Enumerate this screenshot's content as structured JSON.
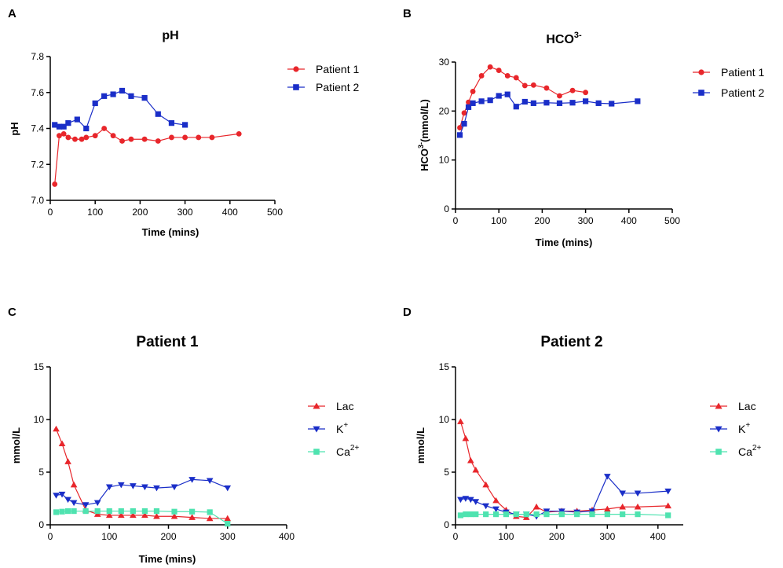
{
  "panels": [
    {
      "letter": "A",
      "title": "pH",
      "xlabel": "Time (mins)",
      "ylabel": "pH"
    },
    {
      "letter": "B",
      "title": "HCO³⁻",
      "xlabel": "Time (mins)",
      "ylabel": "HCO³⁻(mmol/L)"
    },
    {
      "letter": "C",
      "title": "Patient 1",
      "xlabel": "Time (mins)",
      "ylabel": "mmol/L"
    },
    {
      "letter": "D",
      "title": "Patient 2",
      "xlabel": "",
      "ylabel": "mmol/L"
    }
  ],
  "colors": {
    "red": "#e8262b",
    "blue": "#1a2ec8",
    "teal": "#4fe3b0",
    "axis": "#000000"
  },
  "chart_data": [
    {
      "type": "line",
      "title": "pH",
      "xlabel": "Time (mins)",
      "ylabel": "pH",
      "xlim": [
        0,
        500
      ],
      "ylim": [
        7.0,
        7.8
      ],
      "xticks": [
        "0",
        "100",
        "200",
        "300",
        "400",
        "500"
      ],
      "yticks": [
        "7.0",
        "7.2",
        "7.4",
        "7.6",
        "7.8"
      ],
      "legend_position": "top-right",
      "series": [
        {
          "name": "Patient 1",
          "marker": "circle",
          "color": "#e8262b",
          "x": [
            10,
            20,
            30,
            40,
            55,
            70,
            80,
            100,
            120,
            140,
            160,
            180,
            210,
            240,
            270,
            300,
            330,
            360,
            420
          ],
          "y": [
            7.09,
            7.36,
            7.37,
            7.35,
            7.34,
            7.34,
            7.35,
            7.36,
            7.4,
            7.36,
            7.33,
            7.34,
            7.34,
            7.33,
            7.35,
            7.35,
            7.35,
            7.35,
            7.37
          ]
        },
        {
          "name": "Patient 2",
          "marker": "square",
          "color": "#1a2ec8",
          "x": [
            10,
            20,
            30,
            40,
            60,
            80,
            100,
            120,
            140,
            160,
            180,
            210,
            240,
            270,
            300
          ],
          "y": [
            7.42,
            7.41,
            7.41,
            7.43,
            7.45,
            7.4,
            7.54,
            7.58,
            7.59,
            7.61,
            7.58,
            7.57,
            7.48,
            7.43,
            7.42
          ]
        }
      ]
    },
    {
      "type": "line",
      "title": "HCO³⁻",
      "xlabel": "Time (mins)",
      "ylabel": "HCO³⁻(mmol/L)",
      "xlim": [
        0,
        500
      ],
      "ylim": [
        0,
        30
      ],
      "xticks": [
        "0",
        "100",
        "200",
        "300",
        "400",
        "500"
      ],
      "yticks": [
        "0",
        "10",
        "20",
        "30"
      ],
      "legend_position": "top-right",
      "series": [
        {
          "name": "Patient 1",
          "marker": "circle",
          "color": "#e8262b",
          "x": [
            10,
            20,
            30,
            40,
            60,
            80,
            100,
            120,
            140,
            160,
            180,
            210,
            240,
            270,
            300
          ],
          "y": [
            16.6,
            19.6,
            21.8,
            24.0,
            27.2,
            29.0,
            28.3,
            27.2,
            26.8,
            25.2,
            25.3,
            24.7,
            23.1,
            24.2,
            23.8
          ]
        },
        {
          "name": "Patient 2",
          "marker": "square",
          "color": "#1a2ec8",
          "x": [
            10,
            20,
            30,
            40,
            60,
            80,
            100,
            120,
            140,
            160,
            180,
            210,
            240,
            270,
            300,
            330,
            360,
            420
          ],
          "y": [
            15.1,
            17.4,
            20.8,
            21.6,
            22.0,
            22.2,
            23.1,
            23.4,
            20.9,
            21.9,
            21.6,
            21.7,
            21.6,
            21.7,
            22.0,
            21.6,
            21.5,
            22.0
          ]
        }
      ]
    },
    {
      "type": "line",
      "title": "Patient 1",
      "xlabel": "Time (mins)",
      "ylabel": "mmol/L",
      "xlim": [
        0,
        400
      ],
      "ylim": [
        0,
        15
      ],
      "xticks": [
        "0",
        "100",
        "200",
        "300",
        "400"
      ],
      "yticks": [
        "0",
        "5",
        "10",
        "15"
      ],
      "legend_position": "right",
      "series": [
        {
          "name": "Lac",
          "marker": "triangle-up",
          "color": "#e8262b",
          "x": [
            10,
            20,
            30,
            40,
            60,
            80,
            100,
            120,
            140,
            160,
            180,
            210,
            240,
            270,
            300
          ],
          "y": [
            9.1,
            7.7,
            6.0,
            3.8,
            1.4,
            1.0,
            0.9,
            0.9,
            0.9,
            0.9,
            0.8,
            0.8,
            0.7,
            0.6,
            0.6
          ]
        },
        {
          "name": "K",
          "sup": "+",
          "marker": "triangle-down",
          "color": "#1a2ec8",
          "x": [
            10,
            20,
            30,
            40,
            60,
            80,
            100,
            120,
            140,
            160,
            180,
            210,
            240,
            270,
            300
          ],
          "y": [
            2.8,
            2.9,
            2.4,
            2.1,
            1.9,
            2.1,
            3.6,
            3.8,
            3.7,
            3.6,
            3.5,
            3.6,
            4.3,
            4.2,
            3.5
          ]
        },
        {
          "name": "Ca",
          "sup": "2+",
          "marker": "square",
          "color": "#4fe3b0",
          "x": [
            10,
            20,
            30,
            40,
            60,
            80,
            100,
            120,
            140,
            160,
            180,
            210,
            240,
            270,
            300
          ],
          "y": [
            1.2,
            1.25,
            1.3,
            1.3,
            1.3,
            1.3,
            1.3,
            1.3,
            1.3,
            1.3,
            1.3,
            1.25,
            1.25,
            1.2,
            0.1
          ]
        }
      ]
    },
    {
      "type": "line",
      "title": "Patient 2",
      "xlabel": "",
      "ylabel": "mmol/L",
      "xlim": [
        0,
        450
      ],
      "ylim": [
        0,
        15
      ],
      "xticks": [
        "0",
        "100",
        "200",
        "300",
        "400"
      ],
      "yticks": [
        "0",
        "5",
        "10",
        "15"
      ],
      "legend_position": "right",
      "series": [
        {
          "name": "Lac",
          "marker": "triangle-up",
          "color": "#e8262b",
          "x": [
            10,
            20,
            30,
            40,
            60,
            80,
            100,
            120,
            140,
            160,
            180,
            210,
            240,
            270,
            300,
            330,
            360,
            420
          ],
          "y": [
            9.8,
            8.2,
            6.1,
            5.2,
            3.8,
            2.3,
            1.4,
            0.8,
            0.7,
            1.7,
            1.2,
            1.3,
            1.3,
            1.4,
            1.5,
            1.7,
            1.7,
            1.8
          ]
        },
        {
          "name": "K",
          "sup": "+",
          "marker": "triangle-down",
          "color": "#1a2ec8",
          "x": [
            10,
            20,
            30,
            40,
            60,
            80,
            100,
            120,
            140,
            160,
            180,
            210,
            240,
            270,
            300,
            330,
            360,
            420
          ],
          "y": [
            2.4,
            2.5,
            2.4,
            2.2,
            1.8,
            1.5,
            1.2,
            1.0,
            1.0,
            0.8,
            1.3,
            1.3,
            1.2,
            1.3,
            4.6,
            3.0,
            3.0,
            3.2
          ]
        },
        {
          "name": "Ca",
          "sup": "2+",
          "marker": "square",
          "color": "#4fe3b0",
          "x": [
            10,
            20,
            30,
            40,
            60,
            80,
            100,
            120,
            140,
            160,
            180,
            210,
            240,
            270,
            300,
            330,
            360,
            420
          ],
          "y": [
            0.9,
            1.0,
            1.0,
            1.0,
            1.0,
            1.0,
            1.0,
            1.0,
            1.0,
            1.0,
            1.0,
            1.0,
            1.0,
            1.0,
            1.0,
            1.0,
            1.0,
            0.9
          ]
        }
      ]
    }
  ]
}
